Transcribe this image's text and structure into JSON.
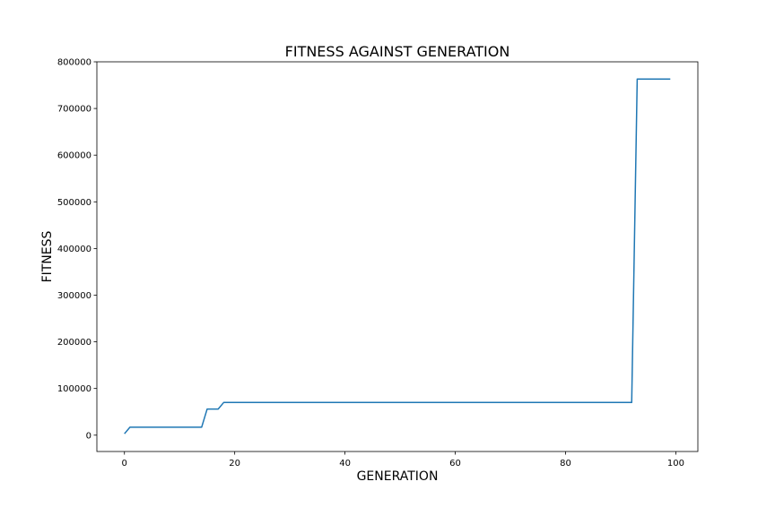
{
  "chart_data": {
    "type": "line",
    "title": "FITNESS AGAINST GENERATION",
    "xlabel": "GENERATION",
    "ylabel": "FITNESS",
    "xlim": [
      -5,
      104
    ],
    "ylim": [
      -35000,
      800000
    ],
    "xticks": [
      0,
      20,
      40,
      60,
      80,
      100
    ],
    "yticks": [
      0,
      100000,
      200000,
      300000,
      400000,
      500000,
      600000,
      700000,
      800000
    ],
    "grid": false,
    "legend": "none",
    "series": [
      {
        "color": "#1f77b4",
        "x": [
          0,
          1,
          14,
          15,
          17,
          18,
          92,
          93,
          99
        ],
        "y": [
          3000,
          17000,
          17000,
          56000,
          56000,
          70000,
          70000,
          763000,
          763000
        ]
      }
    ]
  }
}
